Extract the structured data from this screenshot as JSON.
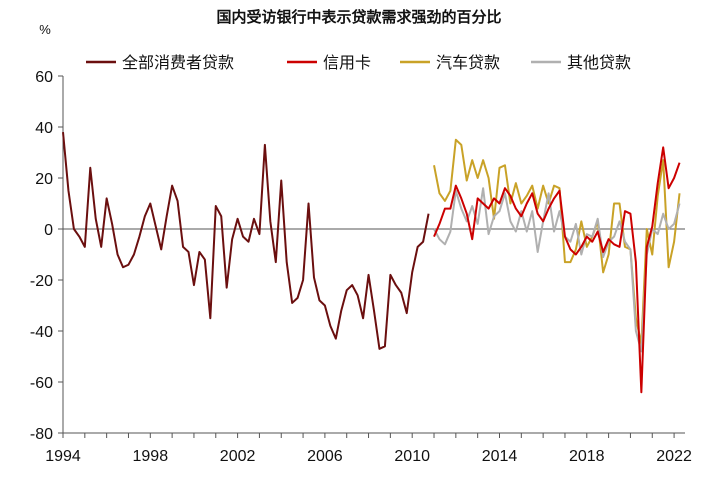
{
  "chart_data": {
    "type": "line",
    "title": "国内受访银行中表示贷款需求强劲的百分比",
    "ylabel": "%",
    "xlabel": "",
    "ylim": [
      -80,
      60
    ],
    "xlim": [
      1994,
      2022.5
    ],
    "y_ticks": [
      "60",
      "40",
      "20",
      "0",
      "-20",
      "-40",
      "-60",
      "-80"
    ],
    "x_ticks": [
      "1994",
      "1998",
      "2002",
      "2006",
      "2010",
      "2014",
      "2018",
      "2022"
    ],
    "legend_position": "top",
    "series": [
      {
        "name": "全部消费者贷款",
        "color": "#6b0f0f",
        "points": [
          [
            1994.0,
            38
          ],
          [
            1994.25,
            15
          ],
          [
            1994.5,
            0
          ],
          [
            1994.75,
            -3
          ],
          [
            1995.0,
            -7
          ],
          [
            1995.25,
            24
          ],
          [
            1995.5,
            4
          ],
          [
            1995.75,
            -7
          ],
          [
            1996.0,
            12
          ],
          [
            1996.25,
            2
          ],
          [
            1996.5,
            -10
          ],
          [
            1996.75,
            -15
          ],
          [
            1997.0,
            -14
          ],
          [
            1997.25,
            -10
          ],
          [
            1997.5,
            -3
          ],
          [
            1997.75,
            5
          ],
          [
            1998.0,
            10
          ],
          [
            1998.25,
            1
          ],
          [
            1998.5,
            -8
          ],
          [
            1998.75,
            5
          ],
          [
            1999.0,
            17
          ],
          [
            1999.25,
            11
          ],
          [
            1999.5,
            -7
          ],
          [
            1999.75,
            -9
          ],
          [
            2000.0,
            -22
          ],
          [
            2000.25,
            -9
          ],
          [
            2000.5,
            -12
          ],
          [
            2000.75,
            -35
          ],
          [
            2001.0,
            9
          ],
          [
            2001.25,
            5
          ],
          [
            2001.5,
            -23
          ],
          [
            2001.75,
            -4
          ],
          [
            2002.0,
            4
          ],
          [
            2002.25,
            -3
          ],
          [
            2002.5,
            -5
          ],
          [
            2002.75,
            4
          ],
          [
            2003.0,
            -2
          ],
          [
            2003.25,
            33
          ],
          [
            2003.5,
            3
          ],
          [
            2003.75,
            -13
          ],
          [
            2004.0,
            19
          ],
          [
            2004.25,
            -13
          ],
          [
            2004.5,
            -29
          ],
          [
            2004.75,
            -27
          ],
          [
            2005.0,
            -20
          ],
          [
            2005.25,
            10
          ],
          [
            2005.5,
            -19
          ],
          [
            2005.75,
            -28
          ],
          [
            2006.0,
            -30
          ],
          [
            2006.25,
            -38
          ],
          [
            2006.5,
            -43
          ],
          [
            2006.75,
            -32
          ],
          [
            2007.0,
            -24
          ],
          [
            2007.25,
            -22
          ],
          [
            2007.5,
            -26
          ],
          [
            2007.75,
            -35
          ],
          [
            2008.0,
            -18
          ],
          [
            2008.25,
            -32
          ],
          [
            2008.5,
            -47
          ],
          [
            2008.75,
            -46
          ],
          [
            2009.0,
            -18
          ],
          [
            2009.25,
            -22
          ],
          [
            2009.5,
            -25
          ],
          [
            2009.75,
            -33
          ],
          [
            2010.0,
            -17
          ],
          [
            2010.25,
            -7
          ],
          [
            2010.5,
            -5
          ],
          [
            2010.75,
            6
          ]
        ]
      },
      {
        "name": "信用卡",
        "color": "#cc0000",
        "points": [
          [
            2011.0,
            -3
          ],
          [
            2011.25,
            2
          ],
          [
            2011.5,
            8
          ],
          [
            2011.75,
            8
          ],
          [
            2012.0,
            17
          ],
          [
            2012.25,
            12
          ],
          [
            2012.5,
            6
          ],
          [
            2012.75,
            -4
          ],
          [
            2013.0,
            12
          ],
          [
            2013.25,
            10
          ],
          [
            2013.5,
            8
          ],
          [
            2013.75,
            12
          ],
          [
            2014.0,
            10
          ],
          [
            2014.25,
            16
          ],
          [
            2014.5,
            13
          ],
          [
            2014.75,
            8
          ],
          [
            2015.0,
            5
          ],
          [
            2015.25,
            10
          ],
          [
            2015.5,
            14
          ],
          [
            2015.75,
            6
          ],
          [
            2016.0,
            3
          ],
          [
            2016.25,
            8
          ],
          [
            2016.5,
            12
          ],
          [
            2016.75,
            15
          ],
          [
            2017.0,
            -3
          ],
          [
            2017.25,
            -8
          ],
          [
            2017.5,
            -10
          ],
          [
            2017.75,
            -7
          ],
          [
            2018.0,
            -3
          ],
          [
            2018.25,
            -5
          ],
          [
            2018.5,
            -1
          ],
          [
            2018.75,
            -9
          ],
          [
            2019.0,
            -4
          ],
          [
            2019.25,
            -6
          ],
          [
            2019.5,
            -7
          ],
          [
            2019.75,
            7
          ],
          [
            2020.0,
            6
          ],
          [
            2020.25,
            -13
          ],
          [
            2020.5,
            -64
          ],
          [
            2020.75,
            -7
          ],
          [
            2021.0,
            1
          ],
          [
            2021.25,
            18
          ],
          [
            2021.5,
            32
          ],
          [
            2021.75,
            16
          ],
          [
            2022.0,
            20
          ],
          [
            2022.25,
            26
          ]
        ]
      },
      {
        "name": "汽车贷款",
        "color": "#c9a227",
        "points": [
          [
            2011.0,
            25
          ],
          [
            2011.25,
            14
          ],
          [
            2011.5,
            11
          ],
          [
            2011.75,
            15
          ],
          [
            2012.0,
            35
          ],
          [
            2012.25,
            33
          ],
          [
            2012.5,
            19
          ],
          [
            2012.75,
            27
          ],
          [
            2013.0,
            20
          ],
          [
            2013.25,
            27
          ],
          [
            2013.5,
            20
          ],
          [
            2013.75,
            4
          ],
          [
            2014.0,
            24
          ],
          [
            2014.25,
            25
          ],
          [
            2014.5,
            10
          ],
          [
            2014.75,
            18
          ],
          [
            2015.0,
            10
          ],
          [
            2015.25,
            13
          ],
          [
            2015.5,
            17
          ],
          [
            2015.75,
            8
          ],
          [
            2016.0,
            17
          ],
          [
            2016.25,
            10
          ],
          [
            2016.5,
            17
          ],
          [
            2016.75,
            16
          ],
          [
            2017.0,
            -13
          ],
          [
            2017.25,
            -13
          ],
          [
            2017.5,
            -8
          ],
          [
            2017.75,
            3
          ],
          [
            2018.0,
            -7
          ],
          [
            2018.25,
            -3
          ],
          [
            2018.5,
            3
          ],
          [
            2018.75,
            -17
          ],
          [
            2019.0,
            -10
          ],
          [
            2019.25,
            10
          ],
          [
            2019.5,
            10
          ],
          [
            2019.75,
            -7
          ],
          [
            2020.0,
            -8
          ],
          [
            2020.25,
            -35
          ],
          [
            2020.5,
            -45
          ],
          [
            2020.75,
            0
          ],
          [
            2021.0,
            -10
          ],
          [
            2021.25,
            13
          ],
          [
            2021.5,
            27
          ],
          [
            2021.75,
            -15
          ],
          [
            2022.0,
            -5
          ],
          [
            2022.25,
            14
          ]
        ]
      },
      {
        "name": "其他贷款",
        "color": "#b0b0b0",
        "points": [
          [
            2011.0,
            0
          ],
          [
            2011.25,
            -4
          ],
          [
            2011.5,
            -6
          ],
          [
            2011.75,
            -1
          ],
          [
            2012.0,
            15
          ],
          [
            2012.25,
            8
          ],
          [
            2012.5,
            3
          ],
          [
            2012.75,
            9
          ],
          [
            2013.0,
            2
          ],
          [
            2013.25,
            16
          ],
          [
            2013.5,
            -2
          ],
          [
            2013.75,
            5
          ],
          [
            2014.0,
            7
          ],
          [
            2014.25,
            14
          ],
          [
            2014.5,
            3
          ],
          [
            2014.75,
            -1
          ],
          [
            2015.0,
            7
          ],
          [
            2015.25,
            -1
          ],
          [
            2015.5,
            7
          ],
          [
            2015.75,
            -9
          ],
          [
            2016.0,
            3
          ],
          [
            2016.25,
            14
          ],
          [
            2016.5,
            -1
          ],
          [
            2016.75,
            7
          ],
          [
            2017.0,
            -3
          ],
          [
            2017.25,
            -5
          ],
          [
            2017.5,
            2
          ],
          [
            2017.75,
            -10
          ],
          [
            2018.0,
            -2
          ],
          [
            2018.25,
            -3
          ],
          [
            2018.5,
            4
          ],
          [
            2018.75,
            -11
          ],
          [
            2019.0,
            -5
          ],
          [
            2019.25,
            -3
          ],
          [
            2019.5,
            3
          ],
          [
            2019.75,
            -5
          ],
          [
            2020.0,
            -8
          ],
          [
            2020.25,
            -40
          ],
          [
            2020.5,
            -48
          ],
          [
            2020.75,
            -10
          ],
          [
            2021.0,
            0
          ],
          [
            2021.25,
            -2
          ],
          [
            2021.5,
            6
          ],
          [
            2021.75,
            0
          ],
          [
            2022.0,
            2
          ],
          [
            2022.25,
            10
          ]
        ]
      }
    ]
  }
}
